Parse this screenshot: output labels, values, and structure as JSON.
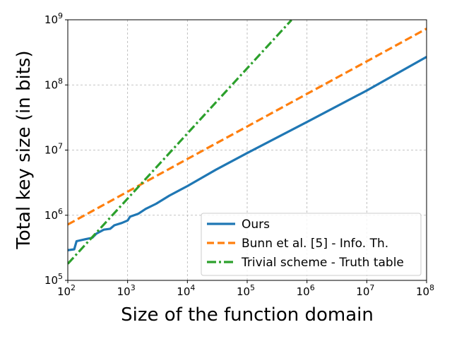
{
  "chart_data": {
    "type": "line",
    "xlabel": "Size of the function domain",
    "ylabel": "Total key size (in bits)",
    "xscale": "log",
    "yscale": "log",
    "xlim": [
      100,
      100000000
    ],
    "ylim": [
      100000,
      1000000000
    ],
    "grid": true,
    "legend_position": "bottom-right",
    "x_ticks": [
      {
        "value": 100,
        "base": "10",
        "exp": "2"
      },
      {
        "value": 1000,
        "base": "10",
        "exp": "3"
      },
      {
        "value": 10000,
        "base": "10",
        "exp": "4"
      },
      {
        "value": 100000,
        "base": "10",
        "exp": "5"
      },
      {
        "value": 1000000,
        "base": "10",
        "exp": "6"
      },
      {
        "value": 10000000,
        "base": "10",
        "exp": "7"
      },
      {
        "value": 100000000,
        "base": "10",
        "exp": "8"
      }
    ],
    "y_ticks": [
      {
        "value": 100000,
        "base": "10",
        "exp": "5"
      },
      {
        "value": 1000000,
        "base": "10",
        "exp": "6"
      },
      {
        "value": 10000000,
        "base": "10",
        "exp": "7"
      },
      {
        "value": 100000000,
        "base": "10",
        "exp": "8"
      },
      {
        "value": 1000000000,
        "base": "10",
        "exp": "9"
      }
    ],
    "series": [
      {
        "name": "Ours",
        "color": "#1f77b4",
        "style": "solid",
        "x": [
          100,
          128,
          140,
          200,
          256,
          300,
          400,
          512,
          600,
          800,
          1000,
          1100,
          1500,
          2000,
          3000,
          5000,
          10000,
          30000,
          100000,
          1000000,
          10000000,
          100000000
        ],
        "y": [
          290000,
          300000,
          400000,
          430000,
          450000,
          520000,
          600000,
          620000,
          700000,
          760000,
          830000,
          950000,
          1050000,
          1250000,
          1500000,
          2000000,
          2800000,
          5000000,
          9000000,
          27000000,
          82000000,
          270000000
        ]
      },
      {
        "name": "Bunn et al. [5] - Info. Th.",
        "color": "#ff7f0e",
        "style": "dashed",
        "x": [
          100,
          1000,
          10000,
          100000,
          1000000,
          10000000,
          100000000
        ],
        "y": [
          720000,
          2300000,
          7300000,
          23000000,
          73000000,
          230000000,
          730000000
        ]
      },
      {
        "name": "Trivial scheme - Truth table",
        "color": "#2ca02c",
        "style": "dashdot",
        "x": [
          100,
          1000,
          10000,
          100000,
          550000
        ],
        "y": [
          180000,
          1800000,
          18000000,
          180000000,
          990000000
        ]
      }
    ]
  }
}
